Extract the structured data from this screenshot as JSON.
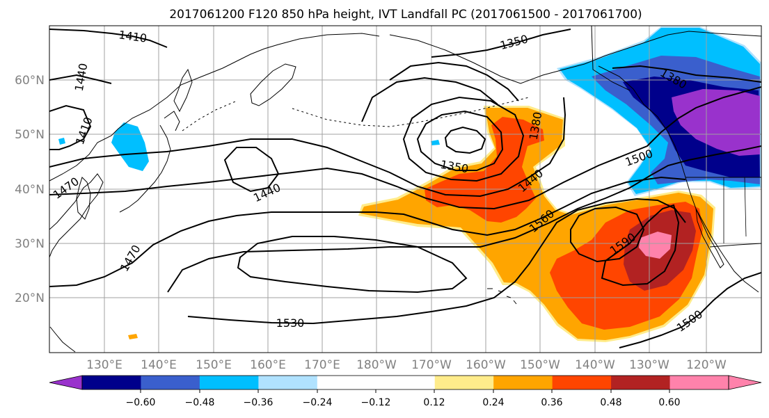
{
  "title": "2017061200 F120 850 hPa height, IVT Landfall PC (2017061500 - 2017061700)",
  "map": {
    "lat_labels": [
      "60°N",
      "50°N",
      "40°N",
      "30°N",
      "20°N"
    ],
    "lon_labels": [
      "130°E",
      "140°E",
      "150°E",
      "160°E",
      "170°E",
      "180°W",
      "170°W",
      "160°W",
      "150°W",
      "140°W",
      "130°W",
      "120°W"
    ],
    "contour_labels": [
      "1410",
      "1350",
      "1440",
      "1410",
      "1380",
      "1380",
      "1350",
      "1500",
      "1470",
      "1440",
      "1440",
      "1560",
      "1470",
      "1590",
      "1530",
      "1500"
    ],
    "colors": {
      "neg_060": "#9932CC",
      "neg_048": "#00008B",
      "neg_036": "#3A5FCD",
      "neg_024": "#00BFFF",
      "neg_012": "#B0E2FF",
      "zero": "#FFFFFF",
      "pos_012": "#FFEC8B",
      "pos_024": "#FFA500",
      "pos_036": "#FF4500",
      "pos_048": "#B22222",
      "pos_060": "#FF82AB"
    }
  },
  "colorbar": {
    "colors": [
      "#9932CC",
      "#00008B",
      "#3A5FCD",
      "#00BFFF",
      "#B0E2FF",
      "#FFFFFF",
      "#FFFFFF",
      "#FFEC8B",
      "#FFA500",
      "#FF4500",
      "#B22222",
      "#FF82AB"
    ],
    "tick_labels": [
      "−0.60",
      "−0.48",
      "−0.36",
      "−0.24",
      "−0.12",
      "0.12",
      "0.24",
      "0.36",
      "0.48",
      "0.60"
    ]
  }
}
